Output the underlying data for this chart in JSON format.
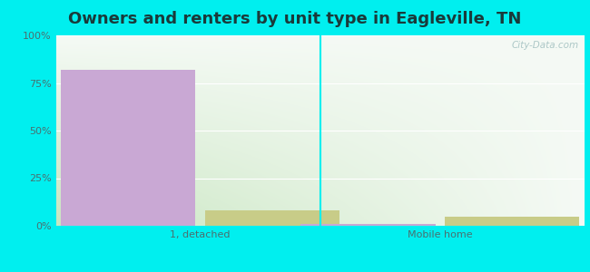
{
  "title": "Owners and renters by unit type in Eagleville, TN",
  "title_fontsize": 13,
  "title_color": "#1a3a3a",
  "categories": [
    "1, detached",
    "Mobile home"
  ],
  "owner_values": [
    82,
    1
  ],
  "renter_values": [
    8,
    5
  ],
  "owner_color": "#c9a8d4",
  "renter_color": "#c8cc88",
  "bar_width": 0.28,
  "group_centers": [
    0.25,
    0.75
  ],
  "ylim": [
    0,
    100
  ],
  "yticks": [
    0,
    25,
    50,
    75,
    100
  ],
  "yticklabels": [
    "0%",
    "25%",
    "50%",
    "75%",
    "100%"
  ],
  "outer_background": "#00efef",
  "watermark": "City-Data.com",
  "grid_color": "#ffffff",
  "text_color": "#4a7070",
  "tick_fontsize": 8
}
